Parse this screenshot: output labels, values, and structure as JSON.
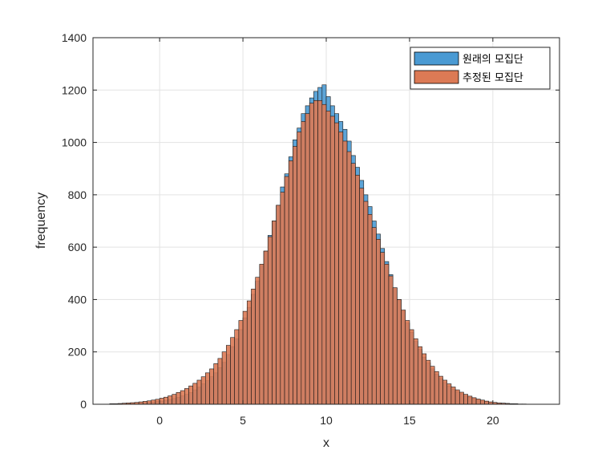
{
  "chart_data": {
    "type": "bar",
    "title": "",
    "xlabel": "x",
    "ylabel": "frequency",
    "xlim": [
      -4,
      24
    ],
    "ylim": [
      0,
      1400
    ],
    "xticks": [
      "0",
      "5",
      "10",
      "15",
      "20"
    ],
    "xtick_values": [
      0,
      5,
      10,
      15,
      20
    ],
    "yticks": [
      "0",
      "200",
      "400",
      "600",
      "800",
      "1000",
      "1200",
      "1400"
    ],
    "ytick_values": [
      0,
      200,
      400,
      600,
      800,
      1000,
      1200,
      1400
    ],
    "grid": true,
    "legend_position": "top-right",
    "bin_start": -3.0,
    "bin_width": 0.25,
    "series": [
      {
        "name": "원래의 모집단",
        "color": "#0072BD",
        "values": [
          1,
          1,
          2,
          2,
          3,
          3,
          4,
          5,
          6,
          7,
          8,
          10,
          12,
          15,
          18,
          22,
          26,
          32,
          38,
          45,
          55,
          65,
          78,
          90,
          105,
          120,
          140,
          160,
          190,
          220,
          250,
          285,
          330,
          370,
          420,
          470,
          530,
          585,
          645,
          700,
          760,
          830,
          880,
          945,
          1010,
          1055,
          1110,
          1140,
          1170,
          1195,
          1210,
          1220,
          1175,
          1140,
          1110,
          1080,
          1050,
          1005,
          950,
          905,
          855,
          800,
          755,
          700,
          650,
          595,
          545,
          495,
          445,
          400,
          355,
          310,
          275,
          240,
          210,
          180,
          158,
          135,
          115,
          98,
          83,
          70,
          58,
          48,
          40,
          33,
          27,
          22,
          17,
          13,
          10,
          8,
          6,
          5,
          4,
          3,
          2,
          2,
          1,
          1
        ]
      },
      {
        "name": "추정된 모집단",
        "color": "#D95319",
        "values": [
          2,
          2,
          3,
          4,
          5,
          6,
          7,
          9,
          11,
          13,
          16,
          19,
          23,
          27,
          32,
          38,
          45,
          52,
          60,
          70,
          80,
          92,
          105,
          120,
          135,
          155,
          175,
          200,
          225,
          255,
          285,
          320,
          355,
          395,
          440,
          485,
          535,
          585,
          640,
          700,
          760,
          810,
          870,
          930,
          985,
          1040,
          1080,
          1110,
          1150,
          1160,
          1160,
          1145,
          1120,
          1100,
          1075,
          1040,
          1005,
          965,
          920,
          875,
          825,
          775,
          725,
          675,
          630,
          580,
          535,
          490,
          445,
          400,
          360,
          320,
          285,
          250,
          220,
          193,
          168,
          145,
          125,
          107,
          92,
          78,
          66,
          55,
          46,
          38,
          31,
          25,
          20,
          16,
          12,
          9,
          7,
          5,
          4,
          3,
          2,
          1
        ]
      }
    ]
  }
}
